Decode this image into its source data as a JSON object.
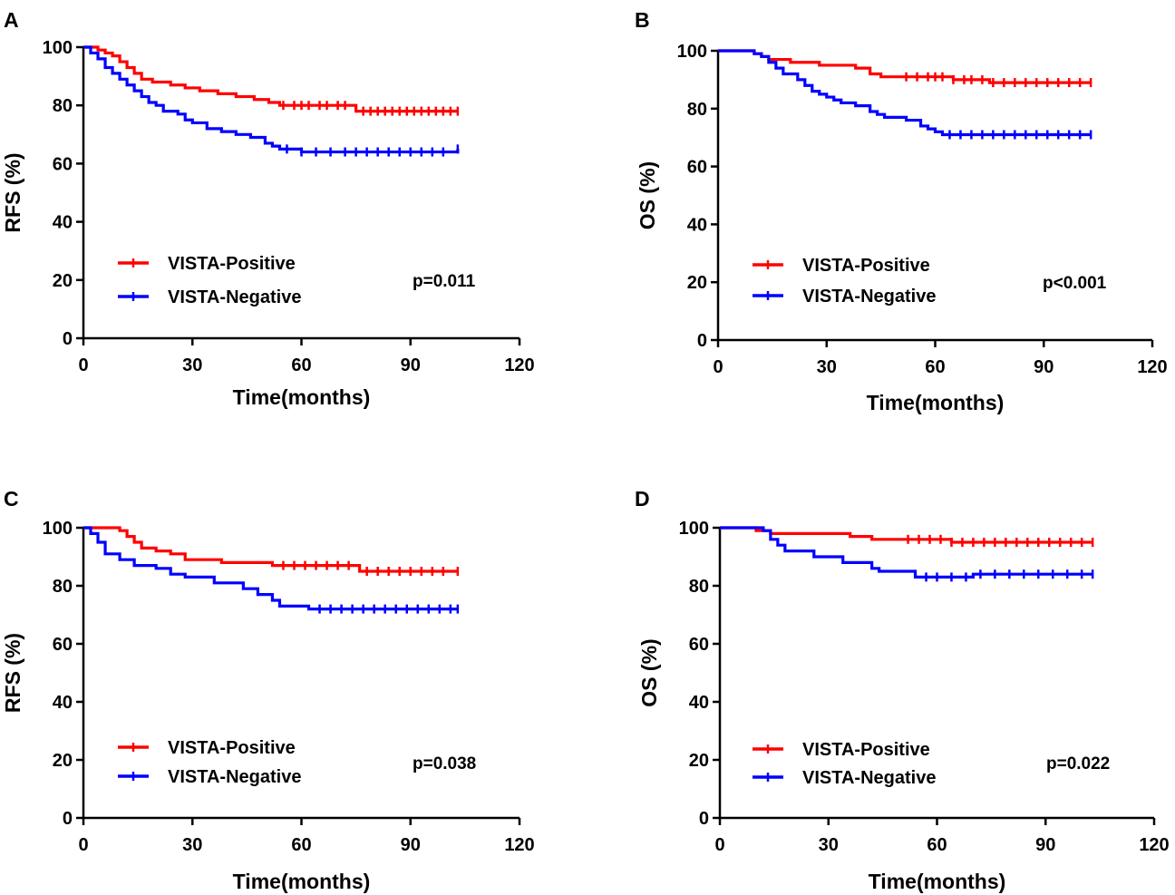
{
  "chart_data": [
    {
      "panel": "A",
      "type": "line",
      "xlabel": "Time(months)",
      "ylabel": "RFS (%)",
      "xlim": [
        0,
        120
      ],
      "ylim": [
        0,
        100
      ],
      "xticks": [
        0,
        30,
        60,
        90,
        120
      ],
      "yticks": [
        0,
        20,
        40,
        60,
        80,
        100
      ],
      "annotation": "p=0.011",
      "series": [
        {
          "name": "VISTA-Positive",
          "color": "#ff0000",
          "points": [
            [
              0,
              100
            ],
            [
              4,
              99
            ],
            [
              6,
              98
            ],
            [
              8,
              97
            ],
            [
              10,
              95
            ],
            [
              12,
              93
            ],
            [
              14,
              91
            ],
            [
              16,
              89
            ],
            [
              19,
              88
            ],
            [
              24,
              87
            ],
            [
              28,
              86
            ],
            [
              32,
              85
            ],
            [
              37,
              84
            ],
            [
              42,
              83
            ],
            [
              47,
              82
            ],
            [
              51,
              81
            ],
            [
              54,
              80
            ],
            [
              58,
              80
            ],
            [
              63,
              80
            ],
            [
              68,
              80
            ],
            [
              72,
              80
            ],
            [
              75,
              78
            ],
            [
              80,
              78
            ],
            [
              85,
              78
            ],
            [
              90,
              78
            ],
            [
              95,
              78
            ],
            [
              103,
              78
            ]
          ],
          "censor": [
            55,
            58,
            60,
            62,
            65,
            67,
            70,
            72,
            77,
            79,
            81,
            83,
            85,
            87,
            89,
            91,
            93,
            95,
            97,
            99,
            101,
            103
          ]
        },
        {
          "name": "VISTA-Negative",
          "color": "#0000ff",
          "points": [
            [
              0,
              100
            ],
            [
              2,
              98
            ],
            [
              4,
              96
            ],
            [
              6,
              93
            ],
            [
              8,
              91
            ],
            [
              10,
              89
            ],
            [
              12,
              87
            ],
            [
              14,
              85
            ],
            [
              16,
              83
            ],
            [
              18,
              81
            ],
            [
              20,
              80
            ],
            [
              22,
              78
            ],
            [
              26,
              77
            ],
            [
              28,
              75
            ],
            [
              30,
              74
            ],
            [
              34,
              72
            ],
            [
              38,
              71
            ],
            [
              42,
              70
            ],
            [
              46,
              69
            ],
            [
              50,
              67
            ],
            [
              52,
              66
            ],
            [
              54,
              65
            ],
            [
              60,
              64
            ],
            [
              65,
              64
            ],
            [
              70,
              64
            ],
            [
              80,
              64
            ],
            [
              90,
              64
            ],
            [
              95,
              64
            ],
            [
              103,
              65
            ]
          ],
          "censor": [
            56,
            60,
            64,
            68,
            72,
            75,
            78,
            81,
            84,
            87,
            90,
            93,
            96,
            99,
            103
          ]
        }
      ]
    },
    {
      "panel": "B",
      "type": "line",
      "xlabel": "Time(months)",
      "ylabel": "OS (%)",
      "xlim": [
        0,
        120
      ],
      "ylim": [
        0,
        100
      ],
      "xticks": [
        0,
        30,
        60,
        90,
        120
      ],
      "yticks": [
        0,
        20,
        40,
        60,
        80,
        100
      ],
      "annotation": "p<0.001",
      "series": [
        {
          "name": "VISTA-Positive",
          "color": "#ff0000",
          "points": [
            [
              0,
              100
            ],
            [
              8,
              100
            ],
            [
              10,
              99
            ],
            [
              12,
              98
            ],
            [
              14,
              97
            ],
            [
              20,
              96
            ],
            [
              28,
              95
            ],
            [
              38,
              94
            ],
            [
              42,
              92
            ],
            [
              45,
              91
            ],
            [
              55,
              91
            ],
            [
              60,
              91
            ],
            [
              65,
              90
            ],
            [
              70,
              90
            ],
            [
              75,
              89
            ],
            [
              80,
              89
            ],
            [
              90,
              89
            ],
            [
              103,
              89
            ]
          ],
          "censor": [
            52,
            55,
            58,
            60,
            62,
            65,
            68,
            70,
            73,
            76,
            79,
            82,
            85,
            88,
            91,
            94,
            97,
            100,
            103
          ]
        },
        {
          "name": "VISTA-Negative",
          "color": "#0000ff",
          "points": [
            [
              0,
              100
            ],
            [
              10,
              99
            ],
            [
              12,
              98
            ],
            [
              14,
              96
            ],
            [
              16,
              94
            ],
            [
              18,
              92
            ],
            [
              22,
              90
            ],
            [
              24,
              88
            ],
            [
              26,
              86
            ],
            [
              28,
              85
            ],
            [
              30,
              84
            ],
            [
              32,
              83
            ],
            [
              34,
              82
            ],
            [
              38,
              81
            ],
            [
              42,
              79
            ],
            [
              44,
              78
            ],
            [
              46,
              77
            ],
            [
              52,
              76
            ],
            [
              56,
              74
            ],
            [
              58,
              73
            ],
            [
              60,
              72
            ],
            [
              62,
              71
            ],
            [
              66,
              71
            ],
            [
              70,
              71
            ],
            [
              80,
              71
            ],
            [
              90,
              71
            ],
            [
              103,
              71
            ]
          ],
          "censor": [
            64,
            67,
            70,
            73,
            76,
            79,
            82,
            85,
            88,
            91,
            94,
            97,
            100,
            103
          ]
        }
      ]
    },
    {
      "panel": "C",
      "type": "line",
      "xlabel": "Time(months)",
      "ylabel": "RFS (%)",
      "xlim": [
        0,
        120
      ],
      "ylim": [
        0,
        100
      ],
      "xticks": [
        0,
        30,
        60,
        90,
        120
      ],
      "yticks": [
        0,
        20,
        40,
        60,
        80,
        100
      ],
      "annotation": "p=0.038",
      "series": [
        {
          "name": "VISTA-Positive",
          "color": "#ff0000",
          "points": [
            [
              0,
              100
            ],
            [
              10,
              99
            ],
            [
              12,
              97
            ],
            [
              14,
              95
            ],
            [
              16,
              93
            ],
            [
              20,
              92
            ],
            [
              24,
              91
            ],
            [
              28,
              89
            ],
            [
              36,
              89
            ],
            [
              38,
              88
            ],
            [
              44,
              88
            ],
            [
              52,
              87
            ],
            [
              56,
              87
            ],
            [
              60,
              87
            ],
            [
              66,
              87
            ],
            [
              75,
              87
            ],
            [
              76,
              85
            ],
            [
              90,
              85
            ],
            [
              103,
              85
            ]
          ],
          "censor": [
            55,
            58,
            61,
            64,
            67,
            70,
            73,
            78,
            81,
            84,
            87,
            90,
            93,
            96,
            99,
            103
          ]
        },
        {
          "name": "VISTA-Negative",
          "color": "#0000ff",
          "points": [
            [
              0,
              100
            ],
            [
              2,
              98
            ],
            [
              4,
              95
            ],
            [
              6,
              91
            ],
            [
              10,
              89
            ],
            [
              14,
              87
            ],
            [
              20,
              86
            ],
            [
              24,
              84
            ],
            [
              28,
              83
            ],
            [
              36,
              81
            ],
            [
              44,
              79
            ],
            [
              48,
              77
            ],
            [
              52,
              75
            ],
            [
              54,
              73
            ],
            [
              60,
              73
            ],
            [
              62,
              72
            ],
            [
              70,
              72
            ],
            [
              80,
              72
            ],
            [
              90,
              72
            ],
            [
              103,
              72
            ]
          ],
          "censor": [
            65,
            68,
            71,
            74,
            77,
            80,
            83,
            86,
            89,
            92,
            95,
            98,
            101,
            103
          ]
        }
      ]
    },
    {
      "panel": "D",
      "type": "line",
      "xlabel": "Time(months)",
      "ylabel": "OS (%)",
      "xlim": [
        0,
        120
      ],
      "ylim": [
        0,
        100
      ],
      "xticks": [
        0,
        30,
        60,
        90,
        120
      ],
      "yticks": [
        0,
        20,
        40,
        60,
        80,
        100
      ],
      "annotation": "p=0.022",
      "series": [
        {
          "name": "VISTA-Positive",
          "color": "#ff0000",
          "points": [
            [
              0,
              100
            ],
            [
              8,
              100
            ],
            [
              10,
              99
            ],
            [
              14,
              98
            ],
            [
              28,
              98
            ],
            [
              36,
              97
            ],
            [
              42,
              96
            ],
            [
              54,
              96
            ],
            [
              60,
              96
            ],
            [
              64,
              95
            ],
            [
              75,
              95
            ],
            [
              80,
              95
            ],
            [
              90,
              95
            ],
            [
              103,
              95
            ]
          ],
          "censor": [
            52,
            55,
            58,
            61,
            64,
            67,
            70,
            73,
            76,
            79,
            82,
            85,
            88,
            91,
            94,
            97,
            100,
            103
          ]
        },
        {
          "name": "VISTA-Negative",
          "color": "#0000ff",
          "points": [
            [
              0,
              100
            ],
            [
              12,
              99
            ],
            [
              14,
              96
            ],
            [
              16,
              94
            ],
            [
              18,
              92
            ],
            [
              26,
              90
            ],
            [
              34,
              88
            ],
            [
              42,
              86
            ],
            [
              44,
              85
            ],
            [
              54,
              83
            ],
            [
              60,
              83
            ],
            [
              70,
              84
            ],
            [
              80,
              84
            ],
            [
              90,
              84
            ],
            [
              103,
              84
            ]
          ],
          "censor": [
            57,
            60,
            64,
            68,
            72,
            76,
            80,
            84,
            88,
            92,
            96,
            100,
            103
          ]
        }
      ]
    }
  ]
}
